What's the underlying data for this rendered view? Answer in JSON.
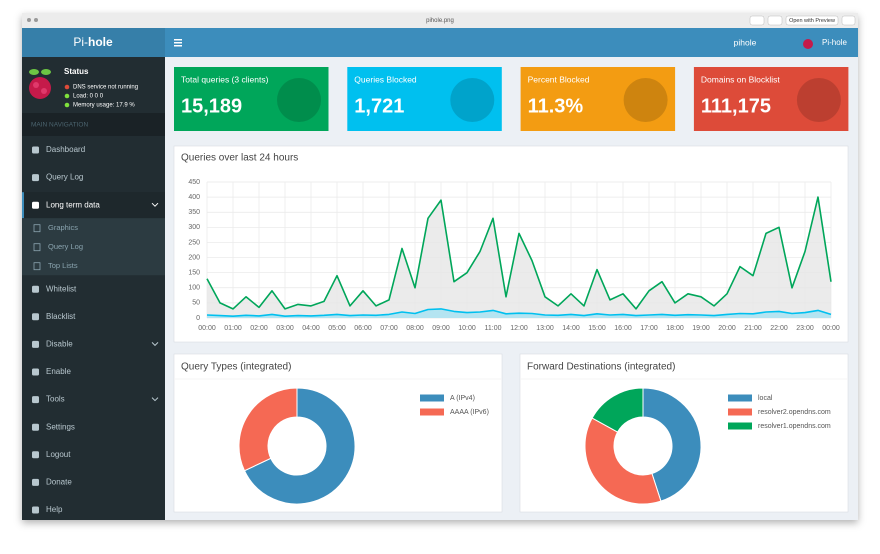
{
  "window": {
    "title": "pihole.png",
    "button": "Open with Preview"
  },
  "header": {
    "logo_prefix": "Pi-",
    "logo_suffix": "hole",
    "hostname": "pihole",
    "user": "Pi-hole"
  },
  "sidebar": {
    "status_title": "Status",
    "status_lines": [
      {
        "text": "DNS service not running",
        "color": "#dd4b39"
      },
      {
        "text": "Load:  0  0  0",
        "color": "#7fe03c"
      },
      {
        "text": "Memory usage:  17.9 %",
        "color": "#7fe03c"
      }
    ],
    "nav_header": "MAIN NAVIGATION",
    "items": [
      {
        "text": "Dashboard"
      },
      {
        "text": "Query Log"
      },
      {
        "text": "Long term data",
        "children": [
          "Graphics",
          "Query Log",
          "Top Lists"
        ]
      },
      {
        "text": "Whitelist"
      },
      {
        "text": "Blacklist"
      },
      {
        "text": "Disable"
      },
      {
        "text": "Enable"
      },
      {
        "text": "Tools"
      },
      {
        "text": "Settings"
      },
      {
        "text": "Logout"
      },
      {
        "text": "Donate"
      },
      {
        "text": "Help"
      }
    ]
  },
  "stats": [
    {
      "label": "Total queries (3 clients)",
      "value": "15,189",
      "color": "#00a65a"
    },
    {
      "label": "Queries Blocked",
      "value": "1,721",
      "color": "#00c0ef"
    },
    {
      "label": "Percent Blocked",
      "value": "11.3%",
      "color": "#f39c12"
    },
    {
      "label": "Domains on Blocklist",
      "value": "111,175",
      "color": "#dd4b39"
    }
  ],
  "chart_data": [
    {
      "type": "line",
      "title": "Queries over last 24 hours",
      "x": [
        0,
        0.5,
        1,
        1.5,
        2,
        2.5,
        3,
        3.5,
        4,
        4.5,
        5,
        5.5,
        6,
        6.5,
        7,
        7.5,
        8,
        8.5,
        9,
        9.5,
        10,
        10.5,
        11,
        11.5,
        12,
        12.5,
        13,
        13.5,
        14,
        14.5,
        15,
        15.5,
        16,
        16.5,
        17,
        17.5,
        18,
        18.5,
        19,
        19.5,
        20,
        20.5,
        21,
        21.5,
        22,
        22.5,
        23,
        23.5,
        24
      ],
      "xlim": [
        0,
        24
      ],
      "xticks": [
        {
          "value": 0,
          "label": "00:00"
        },
        {
          "value": 1,
          "label": "01:00"
        },
        {
          "value": 2,
          "label": "02:00"
        },
        {
          "value": 3,
          "label": "03:00"
        },
        {
          "value": 4,
          "label": "04:00"
        },
        {
          "value": 5,
          "label": "05:00"
        },
        {
          "value": 6,
          "label": "06:00"
        },
        {
          "value": 7,
          "label": "07:00"
        },
        {
          "value": 8,
          "label": "08:00"
        },
        {
          "value": 9,
          "label": "09:00"
        },
        {
          "value": 10,
          "label": "10:00"
        },
        {
          "value": 11,
          "label": "11:00"
        },
        {
          "value": 12,
          "label": "12:00"
        },
        {
          "value": 13,
          "label": "13:00"
        },
        {
          "value": 14,
          "label": "14:00"
        },
        {
          "value": 15,
          "label": "15:00"
        },
        {
          "value": 16,
          "label": "16:00"
        },
        {
          "value": 17,
          "label": "17:00"
        },
        {
          "value": 18,
          "label": "18:00"
        },
        {
          "value": 19,
          "label": "19:00"
        },
        {
          "value": 20,
          "label": "20:00"
        },
        {
          "value": 21,
          "label": "21:00"
        },
        {
          "value": 22,
          "label": "22:00"
        },
        {
          "value": 23,
          "label": "23:00"
        },
        {
          "value": 24,
          "label": "00:00"
        }
      ],
      "ylim": [
        0,
        450
      ],
      "yticks": [
        0,
        50,
        100,
        150,
        200,
        250,
        300,
        350,
        400,
        450
      ],
      "grid": true,
      "series": [
        {
          "color": "#00a65a",
          "fill": "#e6e6e6",
          "values": [
            130,
            50,
            30,
            70,
            35,
            90,
            30,
            45,
            40,
            55,
            140,
            40,
            90,
            40,
            60,
            230,
            100,
            330,
            390,
            120,
            150,
            220,
            330,
            70,
            280,
            190,
            70,
            40,
            80,
            40,
            160,
            60,
            80,
            30,
            90,
            120,
            50,
            80,
            70,
            40,
            80,
            170,
            140,
            280,
            300,
            100,
            220,
            400,
            120
          ]
        },
        {
          "color": "#00c0ef",
          "fill": "#a6e2f2",
          "values": [
            10,
            8,
            6,
            9,
            7,
            12,
            6,
            8,
            7,
            9,
            12,
            8,
            10,
            9,
            12,
            20,
            15,
            28,
            30,
            22,
            18,
            20,
            25,
            14,
            16,
            15,
            10,
            9,
            12,
            8,
            14,
            10,
            12,
            8,
            10,
            12,
            9,
            11,
            10,
            8,
            12,
            15,
            14,
            20,
            22,
            15,
            18,
            25,
            12
          ]
        }
      ]
    },
    {
      "type": "doughnut",
      "title": "Query Types (integrated)",
      "categories": [
        "A (IPv4)",
        "AAAA (IPv6)"
      ],
      "values": [
        68,
        32
      ],
      "colors": [
        "#3c8dbc",
        "#f56954"
      ]
    },
    {
      "type": "doughnut",
      "title": "Forward Destinations (integrated)",
      "categories": [
        "local",
        "resolver2.opendns.com",
        "resolver1.opendns.com"
      ],
      "values": [
        45,
        38,
        17
      ],
      "colors": [
        "#3c8dbc",
        "#f56954",
        "#00a65a"
      ]
    }
  ]
}
